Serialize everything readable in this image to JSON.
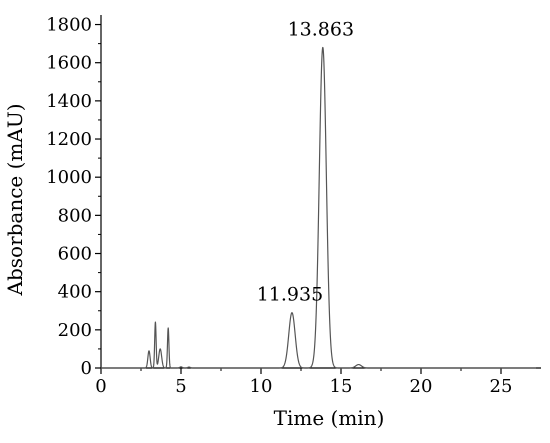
{
  "chart_data": {
    "type": "line",
    "title": "",
    "xlabel": "Time (min)",
    "ylabel": "Absorbance (mAU)",
    "xlim": [
      0,
      27.5
    ],
    "ylim": [
      0,
      1850
    ],
    "xticks": [
      0,
      5,
      10,
      15,
      20,
      25
    ],
    "yticks": [
      0,
      200,
      400,
      600,
      800,
      1000,
      1200,
      1400,
      1600,
      1800
    ],
    "grid": false,
    "legend": "none",
    "line_color": "#555555",
    "baseline": 0,
    "peaks": [
      {
        "x": 3.0,
        "height": 90,
        "sigma": 0.07
      },
      {
        "x": 3.4,
        "height": 240,
        "sigma": 0.045
      },
      {
        "x": 3.7,
        "height": 100,
        "sigma": 0.09
      },
      {
        "x": 4.2,
        "height": 210,
        "sigma": 0.045
      },
      {
        "x": 5.0,
        "height": 6,
        "sigma": 0.08
      },
      {
        "x": 5.5,
        "height": 5,
        "sigma": 0.08
      },
      {
        "x": 11.935,
        "height": 290,
        "sigma": 0.2
      },
      {
        "x": 13.863,
        "height": 1680,
        "sigma": 0.22
      },
      {
        "x": 16.1,
        "height": 18,
        "sigma": 0.18
      }
    ],
    "annotations": [
      {
        "text": "11.935",
        "x": 11.935,
        "y": 290
      },
      {
        "text": "13.863",
        "x": 13.863,
        "y": 1680
      }
    ]
  }
}
